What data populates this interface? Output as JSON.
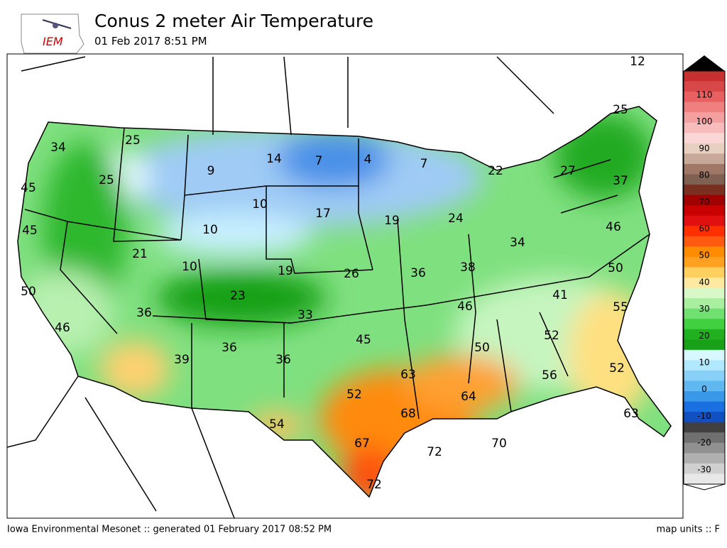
{
  "header": {
    "logo": "IEM",
    "title": "Conus 2 meter Air Temperature",
    "subtitle": "01 Feb 2017 8:51 PM"
  },
  "map": {
    "readings": [
      12,
      25,
      34,
      25,
      14,
      7,
      4,
      7,
      22,
      27,
      37,
      45,
      25,
      9,
      10,
      17,
      19,
      24,
      45,
      10,
      46,
      21,
      10,
      19,
      26,
      36,
      38,
      34,
      50,
      50,
      23,
      41,
      36,
      33,
      46,
      55,
      46,
      45,
      52,
      39,
      36,
      36,
      50,
      63,
      56,
      52,
      52,
      64,
      68,
      63,
      54,
      67,
      72,
      70,
      72
    ]
  },
  "colorbar": {
    "labels": [
      110,
      100,
      90,
      80,
      70,
      60,
      50,
      40,
      30,
      20,
      10,
      0,
      -10,
      -20,
      -30
    ]
  },
  "footer": {
    "credit": "Iowa Environmental Mesonet :: generated 01 February 2017 08:52 PM",
    "units": "map units :: F"
  }
}
